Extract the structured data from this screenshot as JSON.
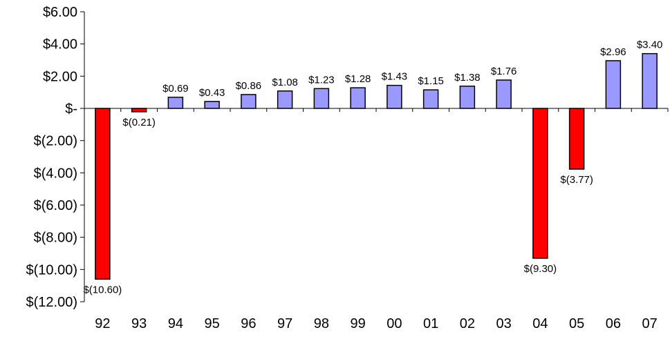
{
  "chart_data": {
    "type": "bar",
    "title": "",
    "xlabel": "",
    "ylabel": "",
    "categories": [
      "92",
      "93",
      "94",
      "95",
      "96",
      "97",
      "98",
      "99",
      "00",
      "01",
      "02",
      "03",
      "04",
      "05",
      "06",
      "07"
    ],
    "values": [
      -10.6,
      -0.21,
      0.69,
      0.43,
      0.86,
      1.08,
      1.23,
      1.28,
      1.43,
      1.15,
      1.38,
      1.76,
      -9.3,
      -3.77,
      2.96,
      3.4
    ],
    "data_labels": [
      "$(10.60)",
      "$(0.21)",
      "$0.69",
      "$0.43",
      "$0.86",
      "$1.08",
      "$1.23",
      "$1.28",
      "$1.43",
      "$1.15",
      "$1.38",
      "$1.76",
      "$(9.30)",
      "$(3.77)",
      "$2.96",
      "$3.40"
    ],
    "ylim": [
      -12,
      6
    ],
    "yticks": [
      6,
      4,
      2,
      0,
      -2,
      -4,
      -6,
      -8,
      -10,
      -12
    ],
    "ytick_labels": [
      "$6.00",
      "$4.00",
      "$2.00",
      "$-",
      "$(2.00)",
      "$(4.00)",
      "$(6.00)",
      "$(8.00)",
      "$(10.00)",
      "$(12.00)"
    ],
    "grid": false,
    "legend": "none",
    "colors": {
      "positive": "#9999ff",
      "negative": "#ff0000",
      "bar_outline": "#000000",
      "axis": "#000000"
    }
  }
}
